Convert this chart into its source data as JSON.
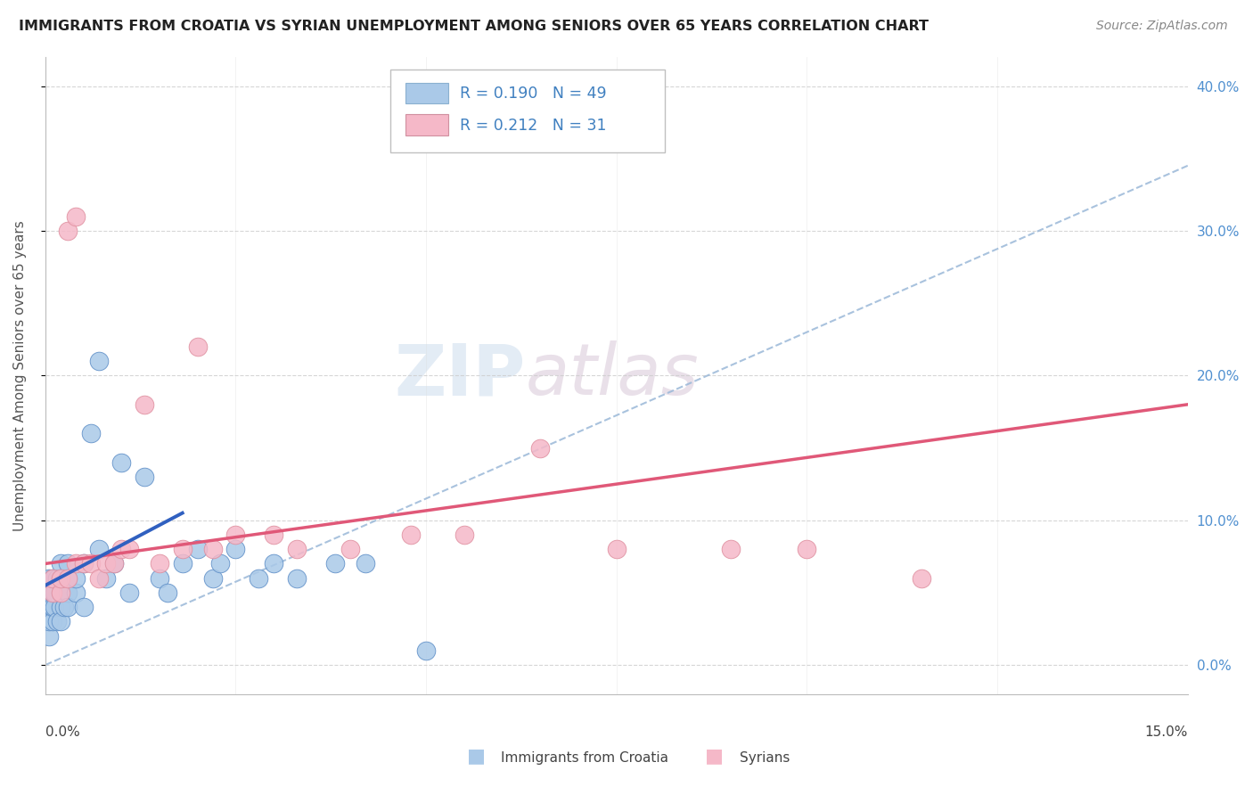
{
  "title": "IMMIGRANTS FROM CROATIA VS SYRIAN UNEMPLOYMENT AMONG SENIORS OVER 65 YEARS CORRELATION CHART",
  "source": "Source: ZipAtlas.com",
  "ylabel": "Unemployment Among Seniors over 65 years",
  "xlim": [
    0.0,
    0.15
  ],
  "ylim": [
    -0.02,
    0.42
  ],
  "color_blue": "#aac9e8",
  "color_pink": "#f5b8c8",
  "color_blue_line": "#3060c0",
  "color_pink_line": "#e05878",
  "color_blue_dark": "#6090c8",
  "color_pink_dark": "#e090a0",
  "watermark": "ZIPatlas",
  "croatia_x": [
    0.0005,
    0.0005,
    0.0005,
    0.0005,
    0.0005,
    0.0008,
    0.001,
    0.001,
    0.001,
    0.001,
    0.0012,
    0.0012,
    0.0015,
    0.0015,
    0.002,
    0.002,
    0.002,
    0.002,
    0.002,
    0.0025,
    0.003,
    0.003,
    0.003,
    0.003,
    0.004,
    0.004,
    0.005,
    0.005,
    0.006,
    0.007,
    0.007,
    0.008,
    0.009,
    0.01,
    0.011,
    0.013,
    0.015,
    0.016,
    0.018,
    0.02,
    0.022,
    0.023,
    0.025,
    0.028,
    0.03,
    0.033,
    0.038,
    0.042,
    0.05
  ],
  "croatia_y": [
    0.04,
    0.05,
    0.06,
    0.02,
    0.03,
    0.04,
    0.05,
    0.03,
    0.06,
    0.04,
    0.04,
    0.05,
    0.03,
    0.06,
    0.04,
    0.05,
    0.03,
    0.06,
    0.07,
    0.04,
    0.05,
    0.06,
    0.04,
    0.07,
    0.05,
    0.06,
    0.04,
    0.07,
    0.16,
    0.21,
    0.08,
    0.06,
    0.07,
    0.14,
    0.05,
    0.13,
    0.06,
    0.05,
    0.07,
    0.08,
    0.06,
    0.07,
    0.08,
    0.06,
    0.07,
    0.06,
    0.07,
    0.07,
    0.01
  ],
  "syrian_x": [
    0.001,
    0.001,
    0.002,
    0.002,
    0.003,
    0.003,
    0.004,
    0.004,
    0.005,
    0.006,
    0.007,
    0.008,
    0.009,
    0.01,
    0.011,
    0.013,
    0.015,
    0.018,
    0.02,
    0.022,
    0.025,
    0.03,
    0.033,
    0.04,
    0.048,
    0.055,
    0.065,
    0.075,
    0.09,
    0.1,
    0.115
  ],
  "syrian_y": [
    0.05,
    0.06,
    0.05,
    0.06,
    0.06,
    0.3,
    0.31,
    0.07,
    0.07,
    0.07,
    0.06,
    0.07,
    0.07,
    0.08,
    0.08,
    0.18,
    0.07,
    0.08,
    0.22,
    0.08,
    0.09,
    0.09,
    0.08,
    0.08,
    0.09,
    0.09,
    0.15,
    0.08,
    0.08,
    0.08,
    0.06
  ],
  "blue_line_x": [
    0.0,
    0.018
  ],
  "blue_line_y": [
    0.055,
    0.105
  ],
  "pink_line_x": [
    0.0,
    0.15
  ],
  "pink_line_y": [
    0.07,
    0.18
  ],
  "dash_line_x": [
    0.0,
    0.15
  ],
  "dash_line_y": [
    0.0,
    0.345
  ]
}
